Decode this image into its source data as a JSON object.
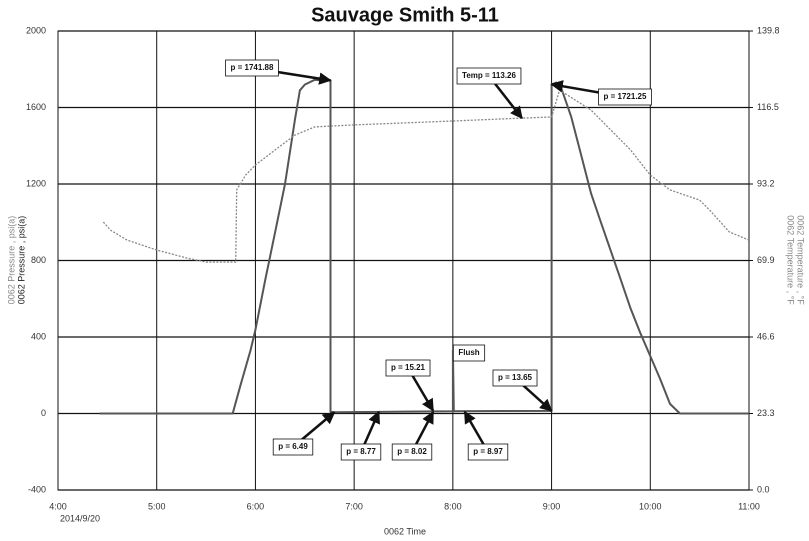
{
  "chart_data": {
    "type": "line",
    "title": "Sauvage Smith 5-11",
    "xlabel": "0062 Time",
    "x_date_label": "2014/9/20",
    "ylabels": [
      "0062 Pressure , psi(a)",
      "0062 Pressure , psi(a)"
    ],
    "y2labels": [
      "0062 Temperature , °F",
      "0062 Temperature , °F"
    ],
    "xlim": [
      4,
      11
    ],
    "xticks": [
      {
        "value": 4,
        "label": "4:00"
      },
      {
        "value": 5,
        "label": "5:00"
      },
      {
        "value": 6,
        "label": "6:00"
      },
      {
        "value": 7,
        "label": "7:00"
      },
      {
        "value": 8,
        "label": "8:00"
      },
      {
        "value": 9,
        "label": "9:00"
      },
      {
        "value": 10,
        "label": "10:00"
      },
      {
        "value": 11,
        "label": "11:00"
      }
    ],
    "ylim": [
      -400,
      2000
    ],
    "yticks": [
      -400,
      0,
      400,
      800,
      1200,
      1600,
      2000
    ],
    "y2lim": [
      0,
      139.8
    ],
    "y2ticks": [
      {
        "value": 0,
        "label": "0.0"
      },
      23.3,
      46.6,
      69.9,
      93.2,
      116.5,
      139.8
    ],
    "grid": true,
    "series": [
      {
        "color": "#555555",
        "axis": "y",
        "x": [
          4.42,
          5.77,
          5.85,
          5.95,
          6.0,
          6.1,
          6.2,
          6.3,
          6.4,
          6.45,
          6.5,
          6.6,
          6.7,
          6.76,
          6.76,
          6.8,
          7.5,
          8.0,
          8.0,
          8.01,
          8.5,
          9.0,
          9.0,
          9.05,
          9.1,
          9.2,
          9.3,
          9.4,
          9.5,
          9.6,
          9.7,
          9.8,
          9.9,
          10.0,
          10.1,
          10.2,
          10.3,
          11.0
        ],
        "values": [
          0,
          0,
          150,
          330,
          437,
          700,
          950,
          1200,
          1535,
          1690,
          1720,
          1745,
          1740,
          1741.88,
          10,
          6.49,
          10,
          12,
          330,
          12,
          13,
          13.65,
          1721.25,
          1730,
          1700,
          1550,
          1350,
          1150,
          1000,
          850,
          700,
          550,
          420,
          300,
          180,
          50,
          0,
          0
        ]
      },
      {
        "color": "#888888",
        "axis": "y2",
        "x": [
          4.46,
          4.53,
          4.7,
          5.0,
          5.3,
          5.5,
          5.8,
          5.81,
          5.9,
          6.0,
          6.2,
          6.4,
          6.6,
          7.0,
          8.0,
          8.7,
          9.0,
          9.08,
          9.4,
          9.8,
          10.0,
          10.2,
          10.5,
          10.6,
          10.8,
          11.0
        ],
        "values": [
          81.6,
          79.2,
          76.1,
          73.1,
          70.7,
          69.4,
          69.4,
          91.4,
          95.9,
          99.0,
          103.6,
          108.1,
          110.6,
          111.2,
          112.4,
          113.26,
          113.6,
          121.8,
          115.7,
          103.6,
          95.9,
          91.4,
          88.3,
          85.3,
          78.6,
          76.1
        ]
      }
    ],
    "annotations": [
      {
        "text": "p = 1741.88",
        "x": 6.76,
        "y": 1741.88
      },
      {
        "text": "Temp = 113.26",
        "x": 8.7,
        "y": 113.26,
        "axis": "y2"
      },
      {
        "text": "p = 1721.25",
        "x": 9.0,
        "y": 1721.25
      },
      {
        "text": "p = 15.21",
        "x": 7.8,
        "y": 15.21
      },
      {
        "text": "Flush"
      },
      {
        "text": "p = 13.65",
        "x": 9.0,
        "y": 13.65
      },
      {
        "text": "p = 6.49",
        "x": 6.8,
        "y": 6.49
      },
      {
        "text": "p = 8.77",
        "x": 7.25,
        "y": 8.77
      },
      {
        "text": "p = 8.02",
        "x": 7.8,
        "y": 8.02
      },
      {
        "text": "p = 8.97",
        "x": 8.12,
        "y": 8.97
      }
    ]
  }
}
